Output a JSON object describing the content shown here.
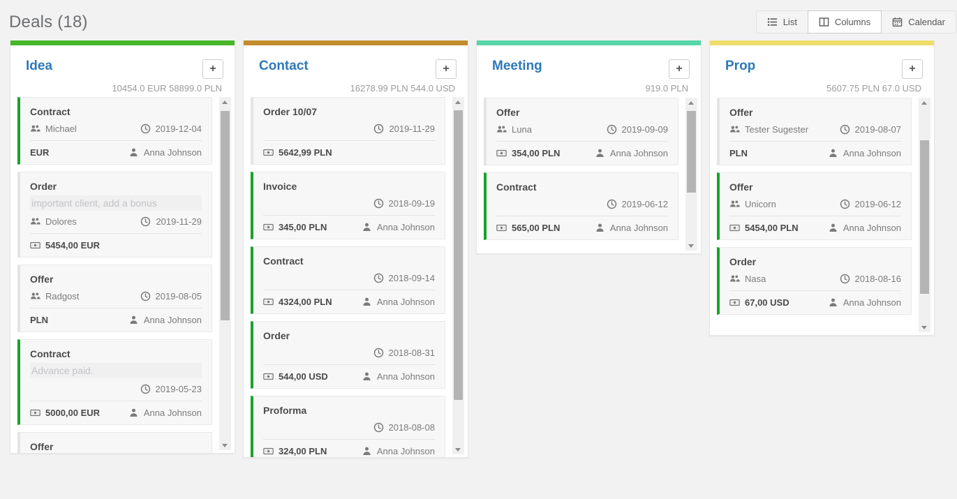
{
  "page": {
    "title": "Deals (18)"
  },
  "toolbar": {
    "buttons": [
      {
        "label": "List",
        "icon": "list-icon",
        "active": false
      },
      {
        "label": "Columns",
        "icon": "columns-icon",
        "active": true
      },
      {
        "label": "Calendar",
        "icon": "calendar-icon",
        "active": false
      }
    ]
  },
  "board": {
    "add_label": "+",
    "accent_green": "#17a22b",
    "columns": [
      {
        "name": "Idea",
        "accent_color": "#47b629",
        "summary": "10454.0 EUR 58899.0 PLN",
        "cards": [
          {
            "title": "Contract",
            "customer": "Michael",
            "date": "2019-12-04",
            "amount": "EUR",
            "owner": "Anna Johnson",
            "accent": "green"
          },
          {
            "title": "Order",
            "description": "important client, add a bonus",
            "customer": "Dolores",
            "date": "2019-11-29",
            "amount": "5454,00 EUR",
            "accent": "none"
          },
          {
            "title": "Offer",
            "customer": "Radgost",
            "date": "2019-08-05",
            "amount": "PLN",
            "owner": "Anna Johnson",
            "accent": "none"
          },
          {
            "title": "Contract",
            "description": "Advance paid.",
            "date": "2019-05-23",
            "amount": "5000,00 EUR",
            "owner": "Anna Johnson",
            "accent": "green"
          },
          {
            "title": "Offer",
            "accent": "none"
          }
        ]
      },
      {
        "name": "Contact",
        "accent_color": "#c28c2c",
        "summary": "16278.99 PLN 544.0 USD",
        "cards": [
          {
            "title": "Order 10/07",
            "date": "2019-11-29",
            "amount": "5642,99 PLN",
            "accent": "none"
          },
          {
            "title": "Invoice",
            "date": "2018-09-19",
            "amount": "345,00 PLN",
            "owner": "Anna Johnson",
            "accent": "green"
          },
          {
            "title": "Contract",
            "date": "2018-09-14",
            "amount": "4324,00 PLN",
            "owner": "Anna Johnson",
            "accent": "green"
          },
          {
            "title": "Order",
            "date": "2018-08-31",
            "amount": "544,00 USD",
            "owner": "Anna Johnson",
            "accent": "green"
          },
          {
            "title": "Proforma",
            "date": "2018-08-08",
            "amount": "324,00 PLN",
            "owner": "Anna Johnson",
            "accent": "green"
          },
          {
            "accent": "green"
          }
        ]
      },
      {
        "name": "Meeting",
        "accent_color": "#55d5a8",
        "summary": "919.0 PLN",
        "cards": [
          {
            "title": "Offer",
            "customer": "Luna",
            "date": "2019-09-09",
            "amount": "354,00 PLN",
            "owner": "Anna Johnson",
            "accent": "none"
          },
          {
            "title": "Contract",
            "date": "2019-06-12",
            "amount": "565,00 PLN",
            "owner": "Anna Johnson",
            "accent": "green"
          }
        ]
      },
      {
        "name": "Prop",
        "accent_color": "#eedd6a",
        "summary": "5607.75 PLN 67.0 USD",
        "cards": [
          {
            "title": "Offer",
            "customer": "Tester Sugester",
            "date": "2019-08-07",
            "amount": "PLN",
            "owner": "Anna Johnson",
            "accent": "none"
          },
          {
            "title": "Offer",
            "customer": "Unicorn",
            "date": "2019-06-12",
            "amount": "5454,00 PLN",
            "owner": "Anna Johnson",
            "accent": "green"
          },
          {
            "title": "Order",
            "customer": "Nasa",
            "date": "2018-08-16",
            "amount": "67,00 USD",
            "owner": "Anna Johnson",
            "accent": "green"
          }
        ]
      }
    ]
  }
}
